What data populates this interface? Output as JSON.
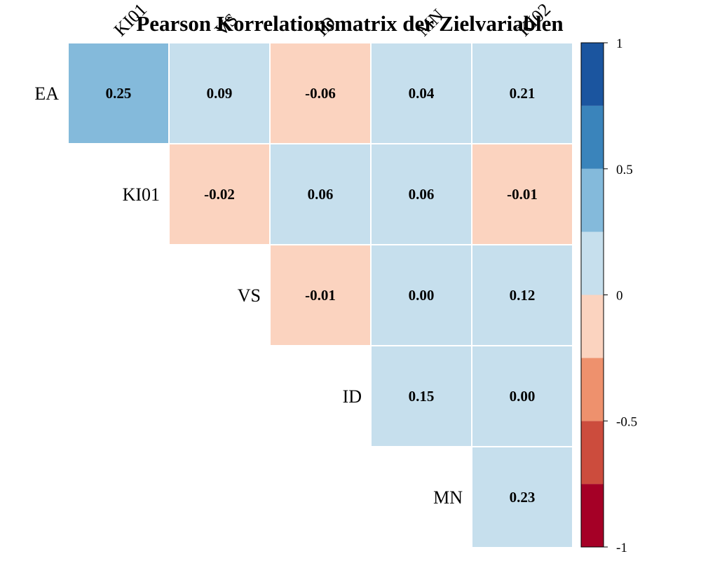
{
  "chart_data": {
    "type": "heatmap",
    "title": "Pearson Korrelationsmatrix der Zielvariablen",
    "row_labels": [
      "EA",
      "KI01",
      "VS",
      "ID",
      "MN"
    ],
    "col_labels": [
      "KI01",
      "VS",
      "ID",
      "MN",
      "KI02"
    ],
    "cells": [
      {
        "row": "EA",
        "col": "KI01",
        "value": 0.25,
        "label": "0.25"
      },
      {
        "row": "EA",
        "col": "VS",
        "value": 0.09,
        "label": "0.09"
      },
      {
        "row": "EA",
        "col": "ID",
        "value": -0.06,
        "label": "-0.06"
      },
      {
        "row": "EA",
        "col": "MN",
        "value": 0.04,
        "label": "0.04"
      },
      {
        "row": "EA",
        "col": "KI02",
        "value": 0.21,
        "label": "0.21"
      },
      {
        "row": "KI01",
        "col": "VS",
        "value": -0.02,
        "label": "-0.02"
      },
      {
        "row": "KI01",
        "col": "ID",
        "value": 0.06,
        "label": "0.06"
      },
      {
        "row": "KI01",
        "col": "MN",
        "value": 0.06,
        "label": "0.06"
      },
      {
        "row": "KI01",
        "col": "KI02",
        "value": -0.01,
        "label": "-0.01"
      },
      {
        "row": "VS",
        "col": "ID",
        "value": -0.01,
        "label": "-0.01"
      },
      {
        "row": "VS",
        "col": "MN",
        "value": 0.0,
        "label": "0.00"
      },
      {
        "row": "VS",
        "col": "KI02",
        "value": 0.12,
        "label": "0.12"
      },
      {
        "row": "ID",
        "col": "MN",
        "value": 0.15,
        "label": "0.15"
      },
      {
        "row": "ID",
        "col": "KI02",
        "value": 0.0,
        "label": "0.00"
      },
      {
        "row": "MN",
        "col": "KI02",
        "value": 0.23,
        "label": "0.23"
      }
    ],
    "color_scale": {
      "range": [
        -1,
        1
      ],
      "tick_values": [
        -1,
        -0.5,
        0,
        0.5,
        1
      ],
      "tick_labels": [
        "-1",
        "-0.5",
        "0",
        "0.5",
        "1"
      ],
      "bins": [
        {
          "from": -1.0,
          "to": -0.75,
          "color": "#a50026"
        },
        {
          "from": -0.75,
          "to": -0.5,
          "color": "#cc4c3d"
        },
        {
          "from": -0.5,
          "to": -0.25,
          "color": "#ee916d"
        },
        {
          "from": -0.25,
          "to": 0.0,
          "color": "#fbd3bf"
        },
        {
          "from": 0.0,
          "to": 0.25,
          "color": "#c6dfed"
        },
        {
          "from": 0.25,
          "to": 0.5,
          "color": "#84badb"
        },
        {
          "from": 0.5,
          "to": 0.75,
          "color": "#3a84bb"
        },
        {
          "from": 0.75,
          "to": 1.0,
          "color": "#1b559f"
        }
      ]
    },
    "colors": {
      "grid_line": "#ffffff",
      "text": "#000000",
      "background": "#ffffff"
    }
  }
}
